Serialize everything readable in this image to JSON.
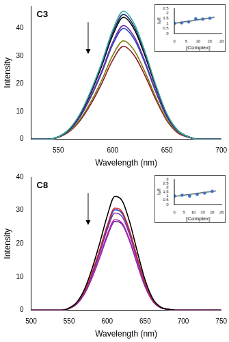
{
  "chart_data": [
    {
      "type": "line",
      "title": "C3",
      "x_label": "Wavelength (nm)",
      "y_label": "Intensity",
      "x": [
        525,
        540,
        550,
        560,
        570,
        580,
        590,
        600,
        610,
        620,
        630,
        640,
        650,
        660,
        670,
        680,
        690,
        700
      ],
      "xlim": [
        525,
        700
      ],
      "xticks": [
        550,
        600,
        650,
        700
      ],
      "ylim": [
        0,
        48
      ],
      "yticks": [
        0,
        10,
        20,
        30,
        40
      ],
      "grid": false,
      "series": [
        {
          "color": "#3aa89a",
          "values": [
            0,
            0,
            0.9,
            3.7,
            9.2,
            17.6,
            27.7,
            39.3,
            46.2,
            41.6,
            31.4,
            19.4,
            9.2,
            3.2,
            0.9,
            0,
            0,
            0
          ]
        },
        {
          "color": "#1c2a6e",
          "values": [
            0,
            0,
            0.9,
            3.6,
            9.0,
            17.1,
            27.0,
            38.3,
            45.0,
            40.5,
            30.6,
            18.9,
            9.0,
            3.2,
            0.9,
            0,
            0,
            0
          ]
        },
        {
          "color": "#000000",
          "values": [
            0,
            0,
            0.9,
            3.5,
            8.8,
            16.7,
            26.4,
            37.4,
            44.0,
            39.6,
            29.9,
            18.5,
            8.8,
            3.1,
            0.9,
            0,
            0,
            0
          ]
        },
        {
          "color": "#7030a0",
          "values": [
            0,
            0,
            0.8,
            3.3,
            8.2,
            15.6,
            24.6,
            34.9,
            41.0,
            36.9,
            27.9,
            17.2,
            8.2,
            2.9,
            0.8,
            0,
            0,
            0
          ]
        },
        {
          "color": "#2040c0",
          "values": [
            0,
            0,
            0.8,
            3.2,
            8.0,
            15.2,
            24.0,
            34.0,
            40.0,
            36.0,
            27.2,
            16.8,
            8.0,
            2.8,
            0.8,
            0,
            0,
            0
          ]
        },
        {
          "color": "#7a7a10",
          "values": [
            0,
            0,
            0.7,
            2.8,
            7.1,
            13.5,
            21.3,
            30.2,
            35.5,
            32.0,
            24.1,
            14.9,
            7.1,
            2.5,
            0.7,
            0,
            0,
            0
          ]
        },
        {
          "color": "#8b1a1a",
          "values": [
            0,
            0,
            0.7,
            2.7,
            6.7,
            12.7,
            20.1,
            28.5,
            33.5,
            30.2,
            22.8,
            14.1,
            6.7,
            2.3,
            0.7,
            0,
            0,
            0
          ]
        }
      ]
    },
    {
      "type": "scatter",
      "x_label": "[Complex]",
      "y_label": "I₀/I",
      "xlim": [
        0,
        20
      ],
      "xticks": [
        0,
        5,
        10,
        15,
        20
      ],
      "ylim": [
        0,
        2.5
      ],
      "yticks": [
        0,
        0.5,
        1,
        1.5,
        2,
        2.5
      ],
      "grid": false,
      "series": [
        {
          "color": "#3070c0",
          "marker": "circle",
          "x": [
            0,
            3,
            6,
            9,
            12,
            15
          ],
          "values": [
            1.0,
            1.05,
            1.15,
            1.45,
            1.42,
            1.5
          ]
        },
        {
          "type": "line",
          "color": "#000000",
          "x": [
            0,
            17
          ],
          "values": [
            1.0,
            1.6
          ]
        }
      ]
    },
    {
      "type": "line",
      "title": "C8",
      "x_label": "Wavelength (nm)",
      "y_label": "Intensity",
      "x": [
        500,
        520,
        540,
        550,
        560,
        570,
        580,
        590,
        600,
        610,
        620,
        630,
        640,
        650,
        660,
        670,
        680,
        690,
        700,
        720,
        750
      ],
      "xlim": [
        500,
        750
      ],
      "xticks": [
        500,
        550,
        600,
        650,
        700,
        750
      ],
      "ylim": [
        0,
        40
      ],
      "yticks": [
        0,
        10,
        20,
        30,
        40
      ],
      "grid": false,
      "series": [
        {
          "color": "#000000",
          "values": [
            0,
            0,
            0,
            0.7,
            2.4,
            6.2,
            12.4,
            20.0,
            28.3,
            34.2,
            32.8,
            26.2,
            17.3,
            9.0,
            3.5,
            1.0,
            0.3,
            0,
            0,
            0,
            0
          ]
        },
        {
          "color": "#d62728",
          "values": [
            0,
            0,
            0,
            0.6,
            2.2,
            5.6,
            11.2,
            18.0,
            25.4,
            30.7,
            29.5,
            23.6,
            15.5,
            8.1,
            3.1,
            0.9,
            0.3,
            0,
            0,
            0,
            0
          ]
        },
        {
          "color": "#1f3fbf",
          "values": [
            0,
            0,
            0,
            0.6,
            2.1,
            5.5,
            11.0,
            17.7,
            25.0,
            30.2,
            29.0,
            23.2,
            15.3,
            7.9,
            3.1,
            0.9,
            0.3,
            0,
            0,
            0,
            0
          ]
        },
        {
          "color": "#7b2f9e",
          "values": [
            0,
            0,
            0,
            0.6,
            2.1,
            5.3,
            10.6,
            17.1,
            24.2,
            29.2,
            28.0,
            22.4,
            14.8,
            7.7,
            3.0,
            0.9,
            0.3,
            0,
            0,
            0,
            0
          ]
        },
        {
          "color": "#c020c0",
          "values": [
            0,
            0,
            0,
            0.6,
            1.9,
            5.0,
            9.9,
            16.0,
            22.6,
            27.2,
            26.1,
            20.9,
            13.8,
            7.2,
            2.8,
            0.8,
            0.3,
            0,
            0,
            0,
            0
          ]
        },
        {
          "color": "#5a2a80",
          "values": [
            0,
            0,
            0,
            0.5,
            1.9,
            4.9,
            9.7,
            15.7,
            22.1,
            26.7,
            25.7,
            20.5,
            13.5,
            7.0,
            2.7,
            0.8,
            0.3,
            0,
            0,
            0,
            0
          ]
        }
      ]
    },
    {
      "type": "scatter",
      "x_label": "[Complex]",
      "y_label": "I₀/I",
      "xlim": [
        0,
        25
      ],
      "xticks": [
        0,
        5,
        10,
        15,
        20,
        25
      ],
      "ylim": [
        0,
        3
      ],
      "yticks": [
        0,
        0.5,
        1,
        1.5,
        2,
        2.5,
        3
      ],
      "grid": false,
      "series": [
        {
          "color": "#3070c0",
          "marker": "circle",
          "x": [
            0,
            4,
            8,
            12,
            16,
            20
          ],
          "values": [
            1.0,
            1.1,
            1.0,
            1.2,
            1.35,
            1.55
          ]
        },
        {
          "type": "line",
          "color": "#000000",
          "x": [
            0,
            22
          ],
          "values": [
            0.95,
            1.6
          ]
        }
      ]
    }
  ]
}
